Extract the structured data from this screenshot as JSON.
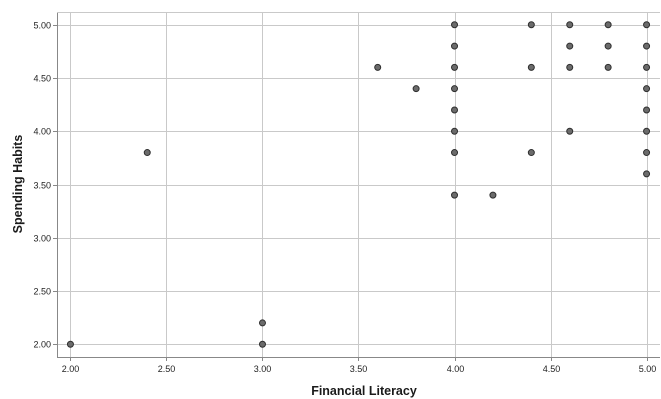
{
  "chart_data": {
    "type": "scatter",
    "title": "",
    "xlabel": "Financial Literacy",
    "ylabel": "Spending Habits",
    "xlim": [
      1.93,
      5.07
    ],
    "ylim": [
      1.88,
      5.12
    ],
    "xticks": [
      2.0,
      2.5,
      3.0,
      3.5,
      4.0,
      4.5,
      5.0
    ],
    "xtick_labels": [
      "2.00",
      "2.50",
      "3.00",
      "3.50",
      "4.00",
      "4.50",
      "5.00"
    ],
    "yticks": [
      2.0,
      2.5,
      3.0,
      3.5,
      4.0,
      4.5,
      5.0
    ],
    "ytick_labels": [
      "2.00",
      "2.50",
      "3.00",
      "3.50",
      "4.00",
      "4.50",
      "5.00"
    ],
    "grid": true,
    "legend": "none",
    "colors": {
      "marker_fill": "#6b6b6b",
      "marker_stroke": "#2e2e2e",
      "grid": "#c9c9c9",
      "axis": "#888888"
    },
    "series": [
      {
        "x": [
          2.0,
          2.4,
          3.0,
          3.0,
          3.6,
          3.8,
          4.0,
          4.0,
          4.0,
          4.0,
          4.0,
          4.0,
          4.0,
          4.0,
          4.2,
          4.4,
          4.4,
          4.4,
          4.6,
          4.6,
          4.6,
          4.6,
          4.8,
          4.8,
          4.8,
          5.0,
          5.0,
          5.0,
          5.0,
          5.0,
          5.0,
          5.0,
          5.0
        ],
        "y": [
          2.0,
          3.8,
          2.2,
          2.0,
          4.6,
          4.4,
          5.0,
          4.8,
          4.6,
          4.4,
          4.2,
          4.0,
          3.8,
          3.4,
          3.4,
          5.0,
          4.6,
          3.8,
          5.0,
          4.8,
          4.6,
          4.0,
          5.0,
          4.8,
          4.6,
          5.0,
          4.8,
          4.6,
          4.4,
          4.2,
          4.0,
          3.8,
          3.6
        ]
      }
    ]
  }
}
